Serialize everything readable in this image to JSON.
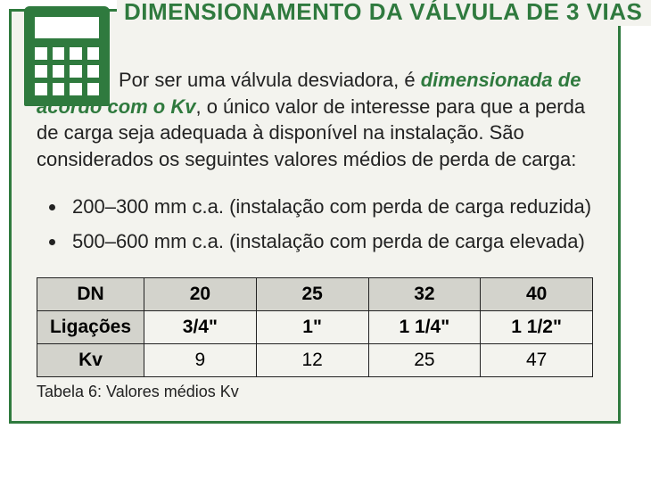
{
  "title": "DIMENSIONAMENTO DA VÁLVULA DE 3 VIAS",
  "paragraph": {
    "pre": "Por ser uma válvula desviadora, é ",
    "em": "dimensionada de acordo com o Kv",
    "post": ", o único valor de interesse para que a perda de carga seja adequada à disponível na instalação. São considerados os seguintes valores médios de perda de carga:"
  },
  "bullets": [
    "200–300 mm c.a. (instalação com perda de carga reduzida)",
    "500–600 mm c.a. (instalação com perda de carga elevada)"
  ],
  "table": {
    "row_headers": [
      "DN",
      "Ligações",
      "Kv"
    ],
    "columns": [
      "20",
      "25",
      "32",
      "40"
    ],
    "rows": {
      "ligacoes": [
        "3/4\"",
        "1\"",
        "1 1/4\"",
        "1 1/2\""
      ],
      "kv": [
        "9",
        "12",
        "25",
        "47"
      ]
    },
    "header_bg": "#d3d3cc",
    "cell_bg": "#f3f3ee",
    "border_color": "#222222"
  },
  "caption": "Tabela 6: Valores médios Kv",
  "colors": {
    "brand_green": "#2f7a3e",
    "panel_bg": "#f3f3ee"
  }
}
